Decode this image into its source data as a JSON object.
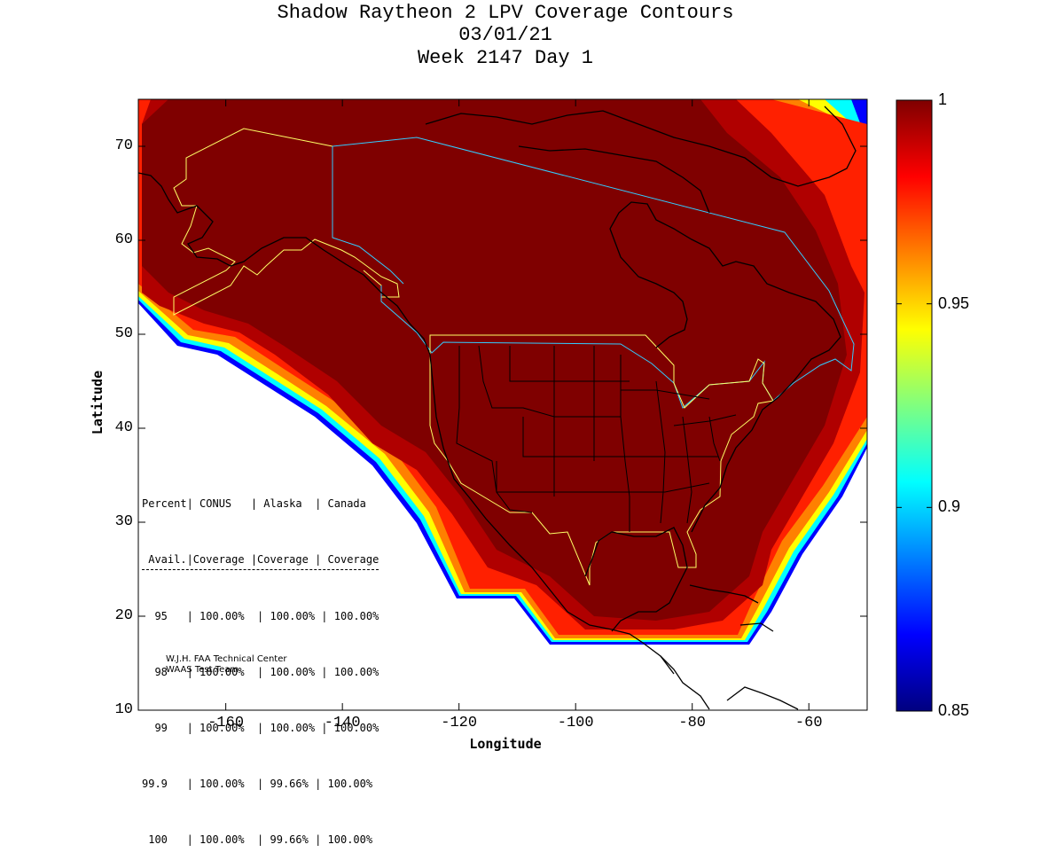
{
  "title": {
    "line1": "Shadow Raytheon 2 LPV Coverage Contours",
    "line2": "03/01/21",
    "line3": "Week 2147 Day 1"
  },
  "axes": {
    "xlabel": "Longitude",
    "ylabel": "Latitude",
    "xticks": [
      "-160",
      "-140",
      "-120",
      "-100",
      "-80",
      "-60"
    ],
    "xtick_values": [
      -160,
      -140,
      -120,
      -100,
      -80,
      -60
    ],
    "yticks": [
      "10",
      "20",
      "30",
      "40",
      "50",
      "60",
      "70"
    ],
    "ytick_values": [
      10,
      20,
      30,
      40,
      50,
      60,
      70
    ],
    "xlim": [
      -175,
      -50
    ],
    "ylim": [
      10,
      75
    ]
  },
  "colorbar": {
    "ticks": [
      "1",
      "0.95",
      "0.9",
      "0.85"
    ],
    "tick_values": [
      1,
      0.95,
      0.9,
      0.85
    ],
    "range": [
      0.85,
      1
    ]
  },
  "stats": {
    "header1": "Percent| CONUS   | Alaska  | Canada",
    "header2": " Avail.|Coverage |Coverage | Coverage",
    "rows": [
      "  95   | 100.00%  | 100.00% | 100.00%",
      "  98   | 100.00%  | 100.00% | 100.00%",
      "  99   | 100.00%  | 100.00% | 100.00%",
      "99.9   | 100.00%  | 99.66% | 100.00%",
      " 100   | 100.00%  | 99.66% | 100.00%"
    ]
  },
  "credit": {
    "line1": "W.J.H. FAA Technical Center",
    "line2": "WAAS Test Team"
  },
  "colors": {
    "full_coverage": "#7f0000",
    "service_border_alaska_conus": "#ffff66",
    "service_border_canada": "#33ccff",
    "coastline": "#000000"
  }
}
